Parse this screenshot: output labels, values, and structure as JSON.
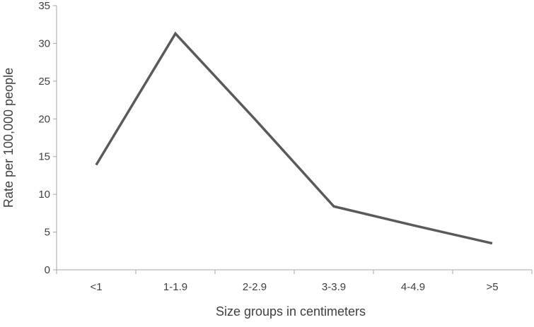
{
  "chart_data": {
    "type": "line",
    "categories": [
      "<1",
      "1-1.9",
      "2-2.9",
      "3-3.9",
      "4-4.9",
      ">5"
    ],
    "series": [
      {
        "values": [
          13.9,
          31.3,
          20.0,
          8.4,
          5.9,
          3.5
        ]
      }
    ],
    "xlabel": "Size groups in centimeters",
    "ylabel": "Rate per 100,000 people",
    "ylim": [
      0,
      35
    ],
    "yticks": [
      0,
      5,
      10,
      15,
      20,
      25,
      30,
      35
    ],
    "grid": false,
    "legend": "none",
    "colors": {
      "line": "#5a5a5a",
      "axis": "#a6a6a6",
      "text": "#404040"
    }
  }
}
